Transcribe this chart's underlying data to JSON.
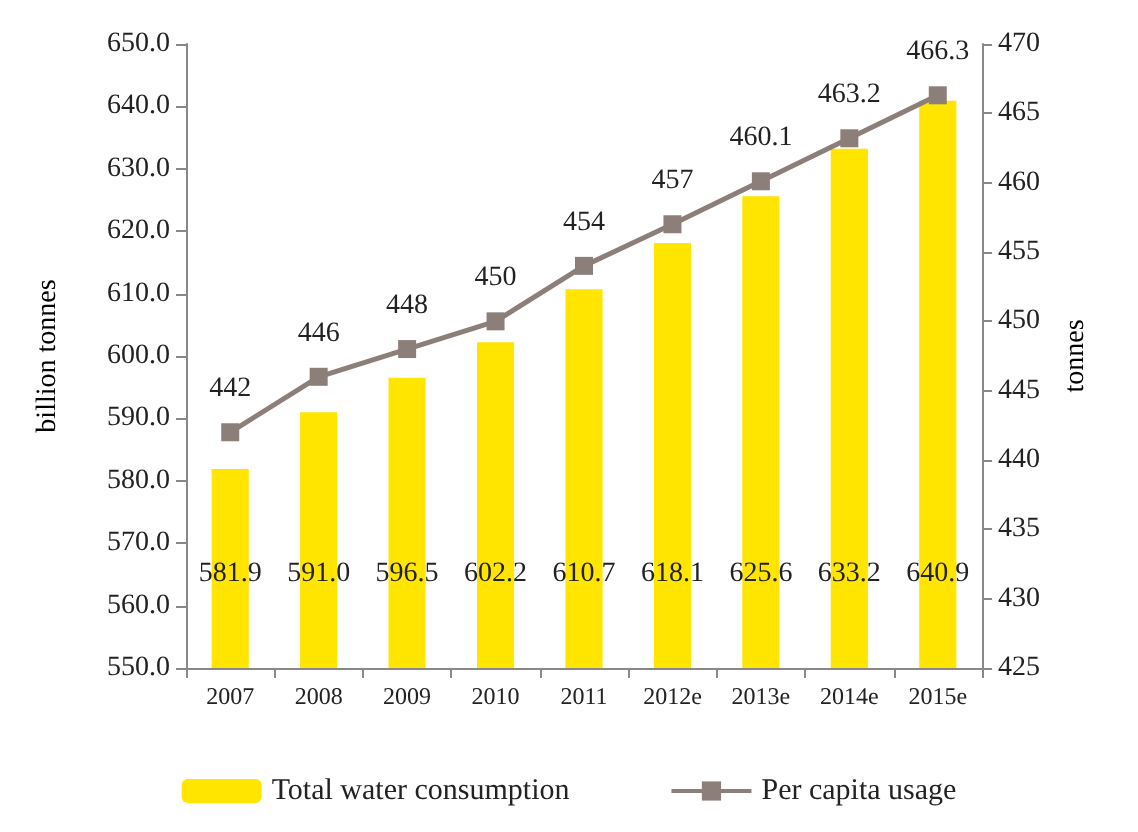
{
  "chart_data": {
    "type": "bar",
    "categories": [
      "2007",
      "2008",
      "2009",
      "2010",
      "2011",
      "2012e",
      "2013e",
      "2014e",
      "2015e"
    ],
    "ylabel": "billion tonnes",
    "y2label": "tonnes",
    "ylim": [
      550,
      650
    ],
    "yticks": [
      {
        "value": 550,
        "label": "550.0"
      },
      {
        "value": 560,
        "label": "560.0"
      },
      {
        "value": 570,
        "label": "570.0"
      },
      {
        "value": 580,
        "label": "580.0"
      },
      {
        "value": 590,
        "label": "590.0"
      },
      {
        "value": 600,
        "label": "600.0"
      },
      {
        "value": 610,
        "label": "610.0"
      },
      {
        "value": 620,
        "label": "620.0"
      },
      {
        "value": 630,
        "label": "630.0"
      },
      {
        "value": 640,
        "label": "640.0"
      },
      {
        "value": 650,
        "label": "650.0"
      }
    ],
    "y2lim": [
      425,
      470
    ],
    "y2ticks": [
      425,
      430,
      435,
      440,
      445,
      450,
      455,
      460,
      465,
      470
    ],
    "series": [
      {
        "name": "Total water consumption",
        "color": "#ffe500",
        "values": [
          581.9,
          591.0,
          596.5,
          602.2,
          610.7,
          618.1,
          625.6,
          633.2,
          640.9
        ],
        "value_labels": [
          "581.9",
          "591.0",
          "596.5",
          "602.2",
          "610.7",
          "618.1",
          "625.6",
          "633.2",
          "640.9"
        ]
      },
      {
        "name": "Per capita usage",
        "type": "line",
        "axis": "y2",
        "color": "#8c7f7a",
        "marker": "square",
        "values": [
          442,
          446,
          448,
          450,
          454,
          457,
          460.1,
          463.2,
          466.3
        ],
        "value_labels": [
          "442",
          "446",
          "448",
          "450",
          "454",
          "457",
          "460.1",
          "463.2",
          "466.3"
        ]
      }
    ],
    "grid": false,
    "legend": "bottom"
  }
}
